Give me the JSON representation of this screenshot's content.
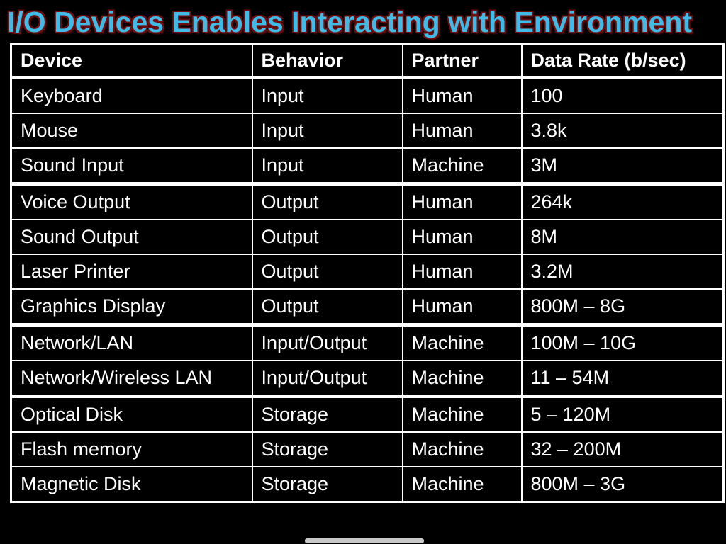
{
  "title": "I/O Devices Enables Interacting with Environment",
  "title_color": "#3FBBE8",
  "title_shadow_color": "#6E0D0D",
  "background_color": "#000000",
  "table": {
    "headers": [
      "Device",
      "Behavior",
      "Partner",
      "Data Rate (b/sec)"
    ],
    "rows": [
      {
        "device": "Keyboard",
        "behavior": "Input",
        "partner": "Human",
        "rate": "100",
        "group_end": false
      },
      {
        "device": "Mouse",
        "behavior": "Input",
        "partner": "Human",
        "rate": "3.8k",
        "group_end": false
      },
      {
        "device": "Sound Input",
        "behavior": "Input",
        "partner": "Machine",
        "rate": "3M",
        "group_end": true
      },
      {
        "device": "Voice Output",
        "behavior": "Output",
        "partner": "Human",
        "rate": "264k",
        "group_end": false
      },
      {
        "device": "Sound Output",
        "behavior": "Output",
        "partner": "Human",
        "rate": "8M",
        "group_end": false
      },
      {
        "device": "Laser Printer",
        "behavior": "Output",
        "partner": "Human",
        "rate": "3.2M",
        "group_end": false
      },
      {
        "device": "Graphics Display",
        "behavior": "Output",
        "partner": "Human",
        "rate": "800M – 8G",
        "group_end": true
      },
      {
        "device": "Network/LAN",
        "behavior": "Input/Output",
        "partner": "Machine",
        "rate": "100M – 10G",
        "group_end": false
      },
      {
        "device": "Network/Wireless LAN",
        "behavior": "Input/Output",
        "partner": "Machine",
        "rate": "11 – 54M",
        "group_end": true
      },
      {
        "device": "Optical Disk",
        "behavior": "Storage",
        "partner": "Machine",
        "rate": "5 – 120M",
        "group_end": false
      },
      {
        "device": "Flash memory",
        "behavior": "Storage",
        "partner": "Machine",
        "rate": "32 – 200M",
        "group_end": false
      },
      {
        "device": "Magnetic Disk",
        "behavior": "Storage",
        "partner": "Machine",
        "rate": "800M – 3G",
        "group_end": false
      }
    ]
  }
}
